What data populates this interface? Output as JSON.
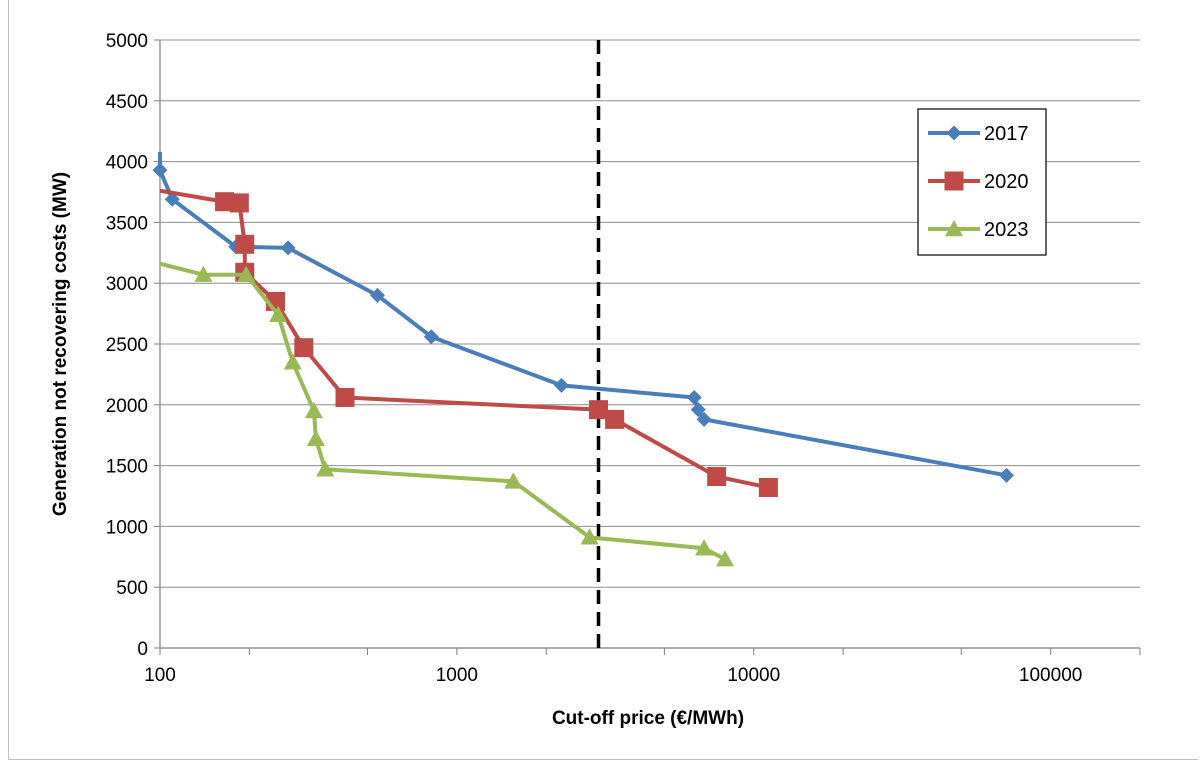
{
  "chart_data": {
    "type": "line",
    "title": "",
    "xlabel": "Cut-off price (€/MWh)",
    "ylabel": "Generation not recovering costs (MW)",
    "xscale": "log",
    "xlim": [
      100,
      200000
    ],
    "ylim": [
      0,
      5000
    ],
    "x_ticks": [
      100,
      1000,
      10000,
      100000
    ],
    "x_tick_labels": [
      "100",
      "1000",
      "10000",
      "100000"
    ],
    "y_ticks": [
      0,
      500,
      1000,
      1500,
      2000,
      2500,
      3000,
      3500,
      4000,
      4500,
      5000
    ],
    "y_tick_labels": [
      "0",
      "500",
      "1000",
      "1500",
      "2000",
      "2500",
      "3000",
      "3500",
      "4000",
      "4500",
      "5000"
    ],
    "grid": "horizontal",
    "legend_position": "top-right",
    "reference_line": {
      "x": 3000,
      "style": "dashed",
      "color": "#000000"
    },
    "series": [
      {
        "name": "2017",
        "color": "#4a7ebb",
        "marker": "diamond",
        "points": [
          [
            100,
            4080
          ],
          [
            100,
            3930
          ],
          [
            110,
            3690
          ],
          [
            180,
            3300
          ],
          [
            270,
            3290
          ],
          [
            540,
            2900
          ],
          [
            820,
            2560
          ],
          [
            2250,
            2160
          ],
          [
            6300,
            2060
          ],
          [
            6500,
            1960
          ],
          [
            6800,
            1880
          ],
          [
            71000,
            1420
          ]
        ]
      },
      {
        "name": "2020",
        "color": "#be4b48",
        "marker": "square",
        "points": [
          [
            100,
            3760
          ],
          [
            165,
            3670
          ],
          [
            185,
            3660
          ],
          [
            193,
            3320
          ],
          [
            193,
            3090
          ],
          [
            245,
            2850
          ],
          [
            305,
            2470
          ],
          [
            420,
            2060
          ],
          [
            3000,
            1960
          ],
          [
            3400,
            1880
          ],
          [
            7500,
            1410
          ],
          [
            11200,
            1320
          ]
        ]
      },
      {
        "name": "2023",
        "color": "#98b954",
        "marker": "triangle",
        "points": [
          [
            100,
            3160
          ],
          [
            140,
            3070
          ],
          [
            195,
            3070
          ],
          [
            250,
            2740
          ],
          [
            280,
            2350
          ],
          [
            330,
            1950
          ],
          [
            335,
            1720
          ],
          [
            360,
            1470
          ],
          [
            1550,
            1370
          ],
          [
            2800,
            910
          ],
          [
            6800,
            820
          ],
          [
            8000,
            730
          ]
        ]
      }
    ]
  }
}
